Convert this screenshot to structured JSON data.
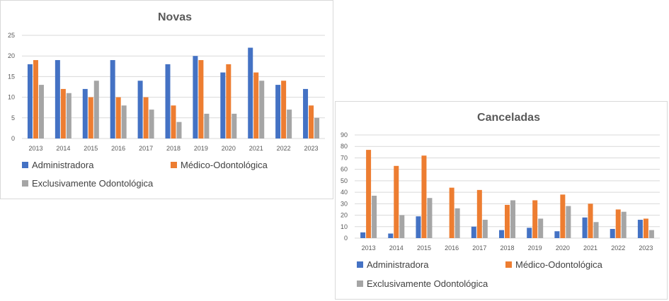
{
  "colors": {
    "administradora": "#4472C4",
    "medico_odontologica": "#ED7D31",
    "exclusivamente_odontologica": "#A5A5A5"
  },
  "chart_data": [
    {
      "type": "bar",
      "title": "Novas",
      "categories": [
        "2013",
        "2014",
        "2015",
        "2016",
        "2017",
        "2018",
        "2019",
        "2020",
        "2021",
        "2022",
        "2023"
      ],
      "ylim": [
        0,
        25
      ],
      "yticks": [
        0,
        5,
        10,
        15,
        20,
        25
      ],
      "grid": true,
      "legend": "bottom",
      "series": [
        {
          "name": "Administradora",
          "values": [
            18,
            19,
            12,
            19,
            14,
            18,
            20,
            16,
            22,
            13,
            12
          ]
        },
        {
          "name": "Médico-Odontológica",
          "values": [
            19,
            12,
            10,
            10,
            10,
            8,
            19,
            18,
            16,
            14,
            8
          ]
        },
        {
          "name": "Exclusivamente Odontológica",
          "values": [
            13,
            11,
            14,
            8,
            7,
            4,
            6,
            6,
            14,
            7,
            5
          ]
        }
      ]
    },
    {
      "type": "bar",
      "title": "Canceladas",
      "categories": [
        "2013",
        "2014",
        "2015",
        "2016",
        "2017",
        "2018",
        "2019",
        "2020",
        "2021",
        "2022",
        "2023"
      ],
      "ylim": [
        0,
        90
      ],
      "yticks": [
        0,
        10,
        20,
        30,
        40,
        50,
        60,
        70,
        80,
        90
      ],
      "grid": true,
      "legend": "bottom",
      "series": [
        {
          "name": "Administradora",
          "values": [
            5,
            4,
            19,
            0,
            10,
            7,
            9,
            6,
            18,
            8,
            16
          ]
        },
        {
          "name": "Médico-Odontológica",
          "values": [
            77,
            63,
            72,
            44,
            42,
            29,
            33,
            38,
            30,
            25,
            17
          ]
        },
        {
          "name": "Exclusivamente Odontológica",
          "values": [
            37,
            20,
            35,
            26,
            16,
            33,
            17,
            28,
            14,
            23,
            7
          ]
        }
      ]
    }
  ]
}
